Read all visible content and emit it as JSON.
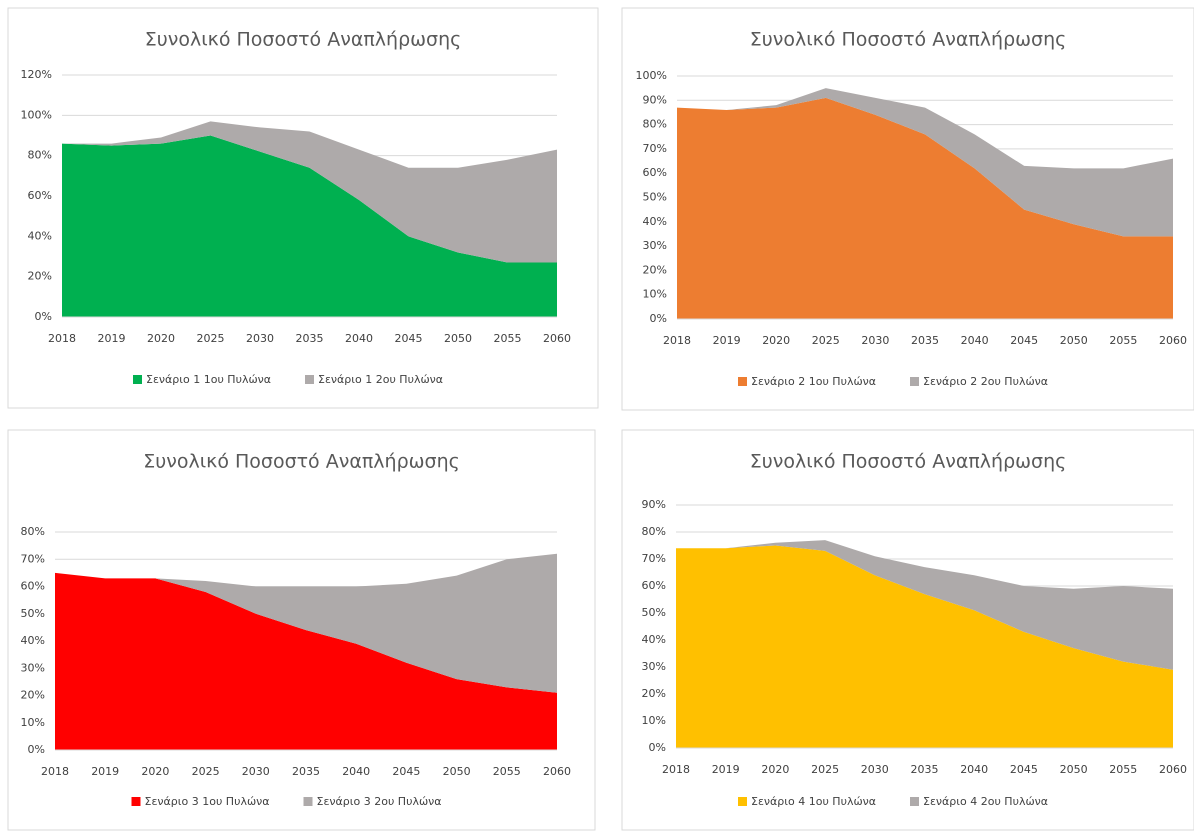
{
  "chart_data": [
    {
      "type": "stacked_area",
      "title": "Συνολικό Ποσοστό Αναπλήρωσης",
      "categories": [
        "2018",
        "2019",
        "2020",
        "2025",
        "2030",
        "2035",
        "2040",
        "2045",
        "2050",
        "2055",
        "2060"
      ],
      "series": [
        {
          "name": "Σενάριο 1 1ου Πυλώνα",
          "color": "#00b050",
          "values": [
            86,
            85,
            86,
            90,
            82,
            74,
            58,
            40,
            32,
            27,
            27
          ]
        },
        {
          "name": "Σενάριο 1 2ου Πυλώνα",
          "color": "#aeaaaa",
          "values": [
            0,
            1,
            3,
            7,
            12,
            18,
            25,
            34,
            42,
            51,
            56
          ]
        }
      ],
      "ylim": [
        0,
        120
      ],
      "yticks": [
        {
          "value": 0,
          "label": "0%"
        },
        {
          "value": 20,
          "label": "20%"
        },
        {
          "value": 40,
          "label": "40%"
        },
        {
          "value": 60,
          "label": "60%"
        },
        {
          "value": 80,
          "label": "80%"
        },
        {
          "value": 100,
          "label": "100%"
        },
        {
          "value": 120,
          "label": "120%"
        }
      ],
      "grid": true,
      "legend": "bottom"
    },
    {
      "type": "stacked_area",
      "title": "Συνολικό Ποσοστό Αναπλήρωσης",
      "categories": [
        "2018",
        "2019",
        "2020",
        "2025",
        "2030",
        "2035",
        "2040",
        "2045",
        "2050",
        "2055",
        "2060"
      ],
      "series": [
        {
          "name": "Σενάριο 2 1ου Πυλώνα",
          "color": "#ed7d31",
          "values": [
            87,
            86,
            87,
            91,
            84,
            76,
            62,
            45,
            39,
            34,
            34
          ]
        },
        {
          "name": "Σενάριο 2 2ου Πυλώνα",
          "color": "#aeaaaa",
          "values": [
            0,
            0,
            1,
            4,
            7,
            11,
            14,
            18,
            23,
            28,
            32
          ]
        }
      ],
      "ylim": [
        0,
        100
      ],
      "yticks": [
        {
          "value": 0,
          "label": "0%"
        },
        {
          "value": 10,
          "label": "10%"
        },
        {
          "value": 20,
          "label": "20%"
        },
        {
          "value": 30,
          "label": "30%"
        },
        {
          "value": 40,
          "label": "40%"
        },
        {
          "value": 50,
          "label": "50%"
        },
        {
          "value": 60,
          "label": "60%"
        },
        {
          "value": 70,
          "label": "70%"
        },
        {
          "value": 80,
          "label": "80%"
        },
        {
          "value": 90,
          "label": "90%"
        },
        {
          "value": 100,
          "label": "100%"
        }
      ],
      "grid": true,
      "legend": "bottom"
    },
    {
      "type": "stacked_area",
      "title": "Συνολικό Ποσοστό Αναπλήρωσης",
      "categories": [
        "2018",
        "2019",
        "2020",
        "2025",
        "2030",
        "2035",
        "2040",
        "2045",
        "2050",
        "2055",
        "2060"
      ],
      "series": [
        {
          "name": "Σενάριο 3 1ου Πυλώνα",
          "color": "#ff0000",
          "values": [
            65,
            63,
            63,
            58,
            50,
            44,
            39,
            32,
            26,
            23,
            21
          ]
        },
        {
          "name": "Σενάριο 3 2ου Πυλώνα",
          "color": "#aeaaaa",
          "values": [
            0,
            0,
            0,
            4,
            10,
            16,
            21,
            29,
            38,
            47,
            51
          ]
        }
      ],
      "ylim": [
        0,
        80
      ],
      "yticks": [
        {
          "value": 0,
          "label": "0%"
        },
        {
          "value": 10,
          "label": "10%"
        },
        {
          "value": 20,
          "label": "20%"
        },
        {
          "value": 30,
          "label": "30%"
        },
        {
          "value": 40,
          "label": "40%"
        },
        {
          "value": 50,
          "label": "50%"
        },
        {
          "value": 60,
          "label": "60%"
        },
        {
          "value": 70,
          "label": "70%"
        },
        {
          "value": 80,
          "label": "80%"
        }
      ],
      "grid": true,
      "legend": "bottom"
    },
    {
      "type": "stacked_area",
      "title": "Συνολικό Ποσοστό Αναπλήρωσης",
      "categories": [
        "2018",
        "2019",
        "2020",
        "2025",
        "2030",
        "2035",
        "2040",
        "2045",
        "2050",
        "2055",
        "2060"
      ],
      "series": [
        {
          "name": "Σενάριο 4 1ου Πυλώνα",
          "color": "#ffc000",
          "values": [
            74,
            74,
            75,
            73,
            64,
            57,
            51,
            43,
            37,
            32,
            29
          ]
        },
        {
          "name": "Σενάριο 4 2ου Πυλώνα",
          "color": "#aeaaaa",
          "values": [
            0,
            0,
            1,
            4,
            7,
            10,
            13,
            17,
            22,
            28,
            30
          ]
        }
      ],
      "ylim": [
        0,
        90
      ],
      "yticks": [
        {
          "value": 0,
          "label": "0%"
        },
        {
          "value": 10,
          "label": "10%"
        },
        {
          "value": 20,
          "label": "20%"
        },
        {
          "value": 30,
          "label": "30%"
        },
        {
          "value": 40,
          "label": "40%"
        },
        {
          "value": 50,
          "label": "50%"
        },
        {
          "value": 60,
          "label": "60%"
        },
        {
          "value": 70,
          "label": "70%"
        },
        {
          "value": 80,
          "label": "80%"
        },
        {
          "value": 90,
          "label": "90%"
        }
      ],
      "grid": true,
      "legend": "bottom"
    }
  ]
}
